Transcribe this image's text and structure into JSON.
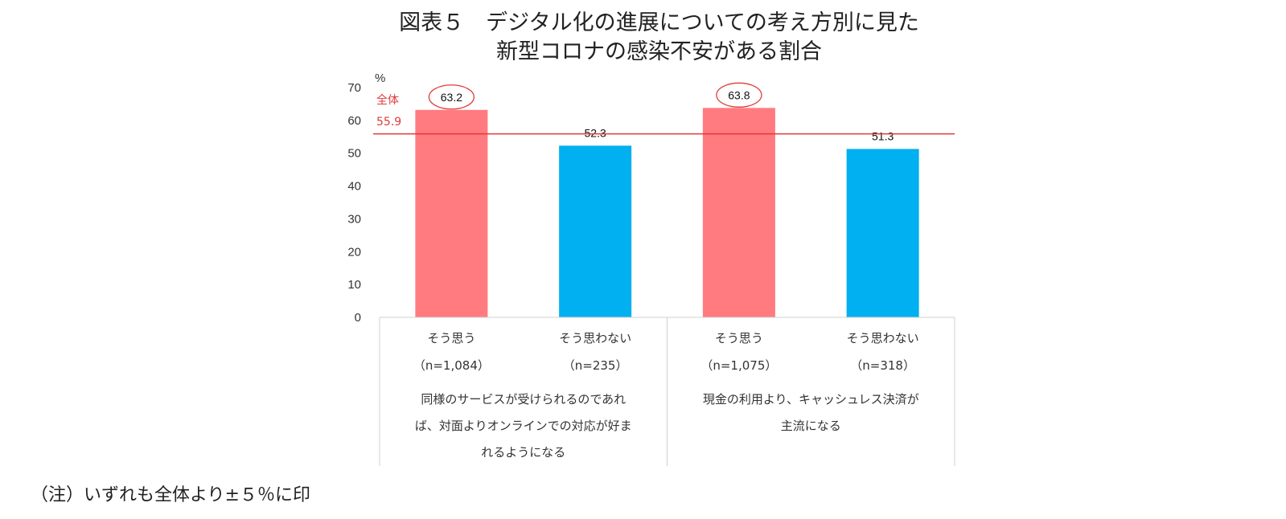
{
  "title_line1": "図表５　デジタル化の進展についての考え方別に見た",
  "title_line2": "新型コロナの感染不安がある割合",
  "note": "（注）いずれも全体より±５％に印",
  "chart_data": {
    "type": "bar",
    "unit": "%",
    "ylim": [
      0,
      70
    ],
    "yticks": [
      0,
      10,
      20,
      30,
      40,
      50,
      60,
      70
    ],
    "overall": {
      "label": "全体",
      "value": 55.9,
      "color": "#e03a3a"
    },
    "categories": [
      {
        "label": "そう思う",
        "n": "（n=1,084）",
        "value": 63.2,
        "value_label": "63.2",
        "color": "#ff7b7f",
        "circled": true
      },
      {
        "label": "そう思わない",
        "n": "（n=235）",
        "value": 52.3,
        "value_label": "52.3",
        "color": "#00b0f0",
        "circled": false
      },
      {
        "label": "そう思う",
        "n": "（n=1,075）",
        "value": 63.8,
        "value_label": "63.8",
        "color": "#ff7b7f",
        "circled": true
      },
      {
        "label": "そう思わない",
        "n": "（n=318）",
        "value": 51.3,
        "value_label": "51.3",
        "color": "#00b0f0",
        "circled": false
      }
    ],
    "groups": [
      {
        "lines": [
          "同様のサービスが受けられるのであれ",
          "ば、対面よりオンラインでの対応が好ま",
          "れるようになる"
        ]
      },
      {
        "lines": [
          "現金の利用より、キャッシュレス決済が",
          "主流になる"
        ]
      }
    ],
    "grid": false
  }
}
